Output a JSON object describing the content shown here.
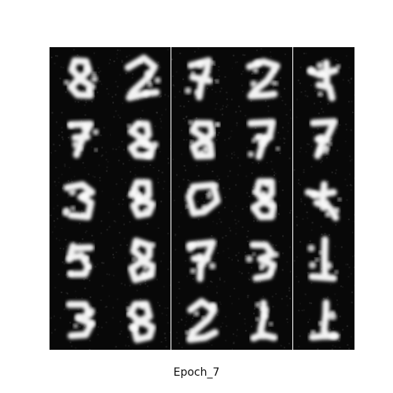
{
  "caption": "Epoch_7",
  "grid": {
    "rows": 5,
    "cols": 5
  },
  "colors": {
    "background": "#ffffff",
    "cell_background": "#080808",
    "stroke": "#f2f2f2",
    "separator": "#ffffff"
  },
  "samples": [
    {
      "shape": "blob-8"
    },
    {
      "shape": "blob-2"
    },
    {
      "shape": "blob-7"
    },
    {
      "shape": "blob-2"
    },
    {
      "shape": "blob-4"
    },
    {
      "shape": "blob-7"
    },
    {
      "shape": "blob-8"
    },
    {
      "shape": "blob-8"
    },
    {
      "shape": "blob-7"
    },
    {
      "shape": "blob-7"
    },
    {
      "shape": "blob-3"
    },
    {
      "shape": "blob-8"
    },
    {
      "shape": "blob-0"
    },
    {
      "shape": "blob-8"
    },
    {
      "shape": "blob-4"
    },
    {
      "shape": "blob-5"
    },
    {
      "shape": "blob-8"
    },
    {
      "shape": "blob-7"
    },
    {
      "shape": "blob-3"
    },
    {
      "shape": "blob-1"
    },
    {
      "shape": "blob-3"
    },
    {
      "shape": "blob-8"
    },
    {
      "shape": "blob-2"
    },
    {
      "shape": "blob-1"
    },
    {
      "shape": "blob-1"
    }
  ]
}
